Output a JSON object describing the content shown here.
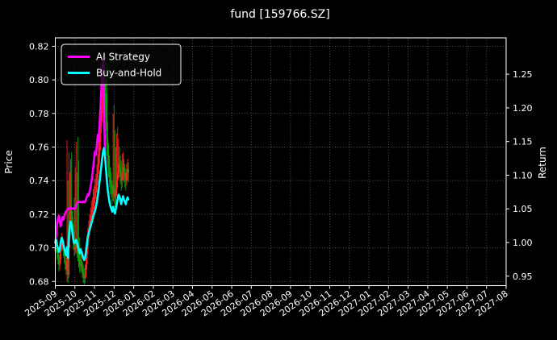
{
  "title": "fund [159766.SZ]",
  "legend": {
    "ai_label": "AI Strategy",
    "bh_label": "Buy-and-Hold"
  },
  "axes": {
    "left_label": "Price",
    "right_label": "Return",
    "left_ticks": [
      "0.68",
      "0.70",
      "0.72",
      "0.74",
      "0.76",
      "0.78",
      "0.80",
      "0.82"
    ],
    "right_ticks": [
      "0.95",
      "1.00",
      "1.05",
      "1.10",
      "1.15",
      "1.20",
      "1.25"
    ]
  },
  "colors": {
    "background": "#000000",
    "text": "#ffffff",
    "grid": "#b0b0b0",
    "spine": "#ffffff",
    "ai_line": "#ff00ff",
    "bh_line": "#00ffff",
    "up_candle": "#ff1f1f",
    "down_candle": "#0b9e0b"
  },
  "chart_data": {
    "type": "candlestick+line",
    "title": "fund [159766.SZ]",
    "grid": true,
    "legend_position": "upper-left",
    "price_ylim": [
      0.6775,
      0.825
    ],
    "return_ylim": [
      0.936,
      1.304
    ],
    "x_axis": {
      "labels": [
        "2025-09",
        "2025-10",
        "2025-11",
        "2025-12",
        "2026-01",
        "2026-02",
        "2026-03",
        "2026-04",
        "2026-05",
        "2026-06",
        "2026-07",
        "2026-08",
        "2026-09",
        "2026-10",
        "2026-11",
        "2026-12",
        "2027-01",
        "2027-02",
        "2027-03",
        "2027-04",
        "2027-05",
        "2027-06",
        "2027-07",
        "2027-08"
      ],
      "days_per_month": 21.7
    },
    "candles": {
      "open": [
        0.698,
        0.7,
        0.703,
        0.697,
        0.694,
        0.69,
        0.693,
        0.7,
        0.705,
        0.703,
        0.698,
        0.694,
        0.69,
        0.687,
        0.695,
        0.684,
        0.705,
        0.716,
        0.722,
        0.718,
        0.71,
        0.703,
        0.699,
        0.7,
        0.703,
        0.7,
        0.696,
        0.692,
        0.689,
        0.693,
        0.69,
        0.687,
        0.684,
        0.682,
        0.684,
        0.69,
        0.699,
        0.706,
        0.71,
        0.713,
        0.717,
        0.72,
        0.723,
        0.727,
        0.73,
        0.733,
        0.737,
        0.742,
        0.748,
        0.755,
        0.763,
        0.772,
        0.78,
        0.788,
        0.795,
        0.798,
        0.79,
        0.792,
        0.765,
        0.755,
        0.748,
        0.742,
        0.738,
        0.735,
        0.732,
        0.737,
        0.733,
        0.73,
        0.735,
        0.74,
        0.745,
        0.75,
        0.748,
        0.744,
        0.74,
        0.745,
        0.748,
        0.745,
        0.742,
        0.74,
        0.744,
        0.747
      ],
      "high": [
        0.706,
        0.708,
        0.705,
        0.7,
        0.696,
        0.697,
        0.703,
        0.709,
        0.707,
        0.705,
        0.7,
        0.697,
        0.692,
        0.764,
        0.74,
        0.757,
        0.745,
        0.753,
        0.757,
        0.722,
        0.714,
        0.73,
        0.748,
        0.763,
        0.745,
        0.766,
        0.752,
        0.706,
        0.7,
        0.696,
        0.692,
        0.69,
        0.688,
        0.69,
        0.695,
        0.704,
        0.712,
        0.716,
        0.72,
        0.724,
        0.728,
        0.73,
        0.735,
        0.737,
        0.741,
        0.744,
        0.75,
        0.756,
        0.763,
        0.772,
        0.78,
        0.788,
        0.798,
        0.808,
        0.815,
        0.812,
        0.8,
        0.81,
        0.775,
        0.762,
        0.755,
        0.748,
        0.745,
        0.74,
        0.78,
        0.785,
        0.77,
        0.76,
        0.768,
        0.772,
        0.765,
        0.76,
        0.755,
        0.752,
        0.756,
        0.757,
        0.753,
        0.75,
        0.747,
        0.75,
        0.753,
        0.751
      ],
      "low": [
        0.693,
        0.697,
        0.693,
        0.69,
        0.686,
        0.687,
        0.691,
        0.698,
        0.699,
        0.695,
        0.691,
        0.687,
        0.684,
        0.68,
        0.679,
        0.682,
        0.7,
        0.712,
        0.71,
        0.705,
        0.699,
        0.695,
        0.696,
        0.697,
        0.694,
        0.692,
        0.688,
        0.685,
        0.686,
        0.685,
        0.682,
        0.679,
        0.678,
        0.679,
        0.682,
        0.687,
        0.696,
        0.702,
        0.707,
        0.71,
        0.713,
        0.716,
        0.719,
        0.723,
        0.726,
        0.729,
        0.733,
        0.738,
        0.744,
        0.75,
        0.758,
        0.768,
        0.775,
        0.783,
        0.79,
        0.783,
        0.77,
        0.755,
        0.748,
        0.742,
        0.736,
        0.732,
        0.73,
        0.726,
        0.728,
        0.727,
        0.724,
        0.726,
        0.731,
        0.736,
        0.741,
        0.742,
        0.738,
        0.734,
        0.736,
        0.74,
        0.739,
        0.736,
        0.734,
        0.737,
        0.74,
        0.739
      ],
      "close": [
        0.7,
        0.703,
        0.697,
        0.694,
        0.69,
        0.693,
        0.7,
        0.705,
        0.703,
        0.698,
        0.694,
        0.69,
        0.687,
        0.695,
        0.684,
        0.705,
        0.716,
        0.722,
        0.718,
        0.71,
        0.703,
        0.699,
        0.7,
        0.703,
        0.7,
        0.696,
        0.692,
        0.689,
        0.693,
        0.69,
        0.687,
        0.684,
        0.682,
        0.684,
        0.69,
        0.699,
        0.706,
        0.71,
        0.713,
        0.717,
        0.72,
        0.723,
        0.727,
        0.73,
        0.733,
        0.737,
        0.742,
        0.748,
        0.755,
        0.763,
        0.772,
        0.78,
        0.788,
        0.795,
        0.798,
        0.79,
        0.778,
        0.765,
        0.755,
        0.748,
        0.742,
        0.738,
        0.735,
        0.732,
        0.737,
        0.733,
        0.73,
        0.735,
        0.74,
        0.745,
        0.75,
        0.748,
        0.744,
        0.74,
        0.745,
        0.748,
        0.745,
        0.742,
        0.74,
        0.744,
        0.747,
        0.745
      ]
    },
    "series": [
      {
        "name": "AI Strategy",
        "axis": "return",
        "color": "#ff00ff",
        "values": [
          1.0,
          1.01,
          1.028,
          1.036,
          1.04,
          1.03,
          1.024,
          1.032,
          1.038,
          1.034,
          1.04,
          1.044,
          1.046,
          1.048,
          1.05,
          1.05,
          1.05,
          1.052,
          1.05,
          1.05,
          1.051,
          1.05,
          1.05,
          1.055,
          1.058,
          1.06,
          1.06,
          1.061,
          1.06,
          1.06,
          1.06,
          1.061,
          1.06,
          1.06,
          1.064,
          1.068,
          1.072,
          1.07,
          1.075,
          1.082,
          1.09,
          1.1,
          1.112,
          1.125,
          1.135,
          1.13,
          1.145,
          1.16,
          1.15,
          1.175,
          1.2,
          1.23,
          1.258,
          1.27,
          1.2,
          1.135
        ]
      },
      {
        "name": "Buy-and-Hold",
        "axis": "return",
        "color": "#00ffff",
        "values": [
          1.0,
          1.004,
          0.996,
          0.991,
          0.986,
          0.99,
          1.0,
          1.007,
          1.004,
          0.997,
          0.991,
          0.986,
          0.981,
          0.993,
          0.977,
          1.007,
          1.023,
          1.031,
          1.026,
          1.014,
          1.004,
          0.999,
          1.0,
          1.004,
          1.0,
          0.994,
          0.989,
          0.984,
          0.99,
          0.986,
          0.981,
          0.977,
          0.974,
          0.977,
          0.986,
          0.999,
          1.009,
          1.014,
          1.019,
          1.024,
          1.029,
          1.033,
          1.039,
          1.043,
          1.047,
          1.053,
          1.06,
          1.069,
          1.079,
          1.09,
          1.103,
          1.114,
          1.126,
          1.136,
          1.14,
          1.129,
          1.111,
          1.093,
          1.079,
          1.069,
          1.06,
          1.054,
          1.05,
          1.046,
          1.053,
          1.047,
          1.043,
          1.05,
          1.057,
          1.064,
          1.071,
          1.069,
          1.063,
          1.057,
          1.064,
          1.069,
          1.064,
          1.06,
          1.057,
          1.063,
          1.067,
          1.064
        ]
      }
    ]
  }
}
